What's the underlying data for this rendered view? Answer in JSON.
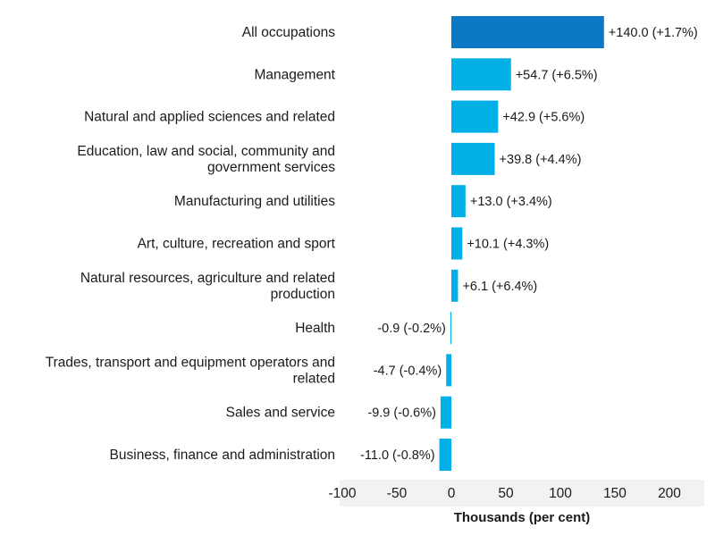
{
  "chart_data": {
    "type": "bar",
    "orientation": "horizontal",
    "title": "",
    "xlabel": "Thousands (per cent)",
    "ylabel": "",
    "xlim": [
      -100,
      230
    ],
    "ticks": [
      -100,
      -50,
      0,
      50,
      100,
      150,
      200
    ],
    "grid": false,
    "highlight_color": "#0a78c2",
    "bar_color": "#00b0e6",
    "categories": [
      [
        "All occupations"
      ],
      [
        "Management"
      ],
      [
        "Natural and applied sciences and related"
      ],
      [
        "Education, law and social, community and",
        "government services"
      ],
      [
        "Manufacturing and utilities"
      ],
      [
        "Art, culture, recreation and sport"
      ],
      [
        "Natural resources, agriculture and related",
        "production"
      ],
      [
        "Health"
      ],
      [
        "Trades, transport and equipment operators and",
        "related"
      ],
      [
        "Sales and service"
      ],
      [
        "Business, finance and administration"
      ]
    ],
    "values": [
      140.0,
      54.7,
      42.9,
      39.8,
      13.0,
      10.1,
      6.1,
      -0.9,
      -4.7,
      -9.9,
      -11.0
    ],
    "percent_changes": [
      1.7,
      6.5,
      5.6,
      4.4,
      3.4,
      4.3,
      6.4,
      -0.2,
      -0.4,
      -0.6,
      -0.8
    ],
    "data_labels": [
      "+140.0 (+1.7%)",
      "+54.7 (+6.5%)",
      "+42.9 (+5.6%)",
      "+39.8 (+4.4%)",
      "+13.0 (+3.4%)",
      "+10.1 (+4.3%)",
      "+6.1 (+6.4%)",
      "-0.9 (-0.2%)",
      "-4.7 (-0.4%)",
      "-9.9 (-0.6%)",
      "-11.0 (-0.8%)"
    ],
    "highlighted_index": 0
  }
}
